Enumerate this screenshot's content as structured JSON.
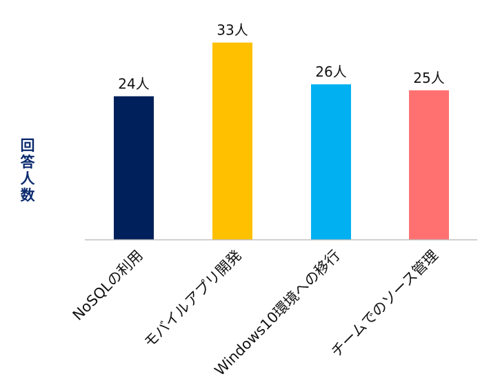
{
  "chart_data": {
    "type": "bar",
    "title": "",
    "xlabel": "",
    "ylabel": "回答人数",
    "unit_suffix": "人",
    "categories": [
      "NoSQLの利用",
      "モバイルアプリ開発",
      "Windows10環境への移行",
      "チームでのソース管理"
    ],
    "values": [
      24,
      33,
      26,
      25
    ],
    "colors": [
      "#00205b",
      "#ffc000",
      "#00b0f0",
      "#ff7171"
    ],
    "ylim": [
      0,
      38.4
    ],
    "grid": false,
    "legend": false,
    "axis_color": "#bfbfbf",
    "ylabel_color": "#0b2a6e"
  }
}
